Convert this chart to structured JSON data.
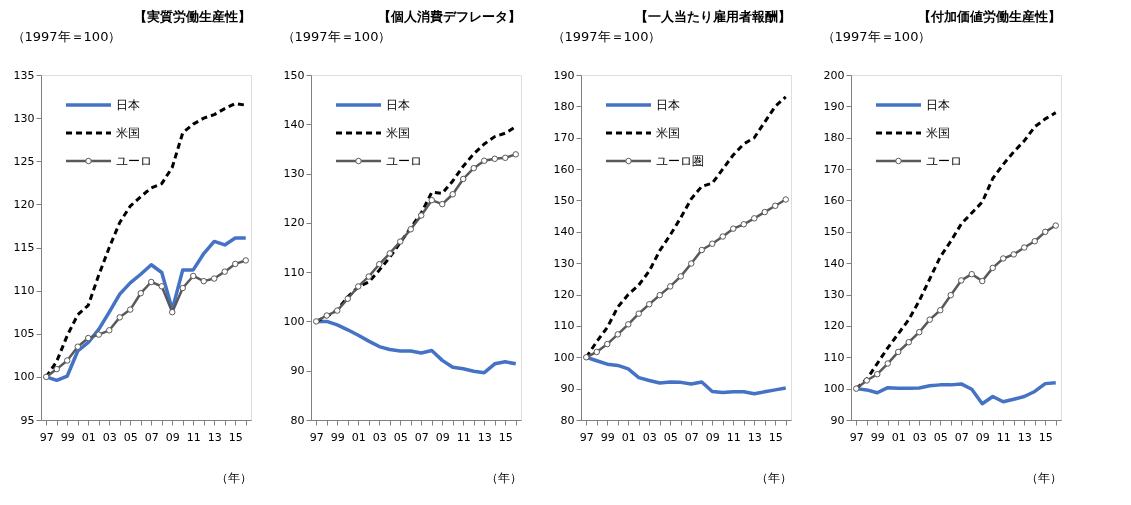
{
  "chart_data": [
    {
      "type": "line",
      "title": "【実質労働生産性】",
      "ylabel": "（1997年＝100）",
      "xlabel": "（年）",
      "categories": [
        "97",
        null,
        "99",
        null,
        "01",
        null,
        "03",
        null,
        "05",
        null,
        "07",
        null,
        "09",
        null,
        "11",
        null,
        "13",
        null,
        "15",
        null
      ],
      "ylim": [
        95,
        135
      ],
      "yticks": [
        95,
        100,
        105,
        110,
        115,
        120,
        125,
        130,
        135
      ],
      "grid": false,
      "legend": "top left",
      "series": [
        {
          "name": "日本",
          "color": "#4472c4",
          "line_style": "solid",
          "marker": "none",
          "values": [
            100,
            99.6,
            100.1,
            103,
            104,
            105.5,
            107.5,
            109.6,
            110.9,
            111.9,
            113,
            112.1,
            107.8,
            112.4,
            112.4,
            114.3,
            115.7,
            115.3,
            116.1,
            116.1
          ]
        },
        {
          "name": "米国",
          "color": "#000000",
          "line_style": "dashed",
          "marker": "none",
          "values": [
            100,
            101.8,
            104.8,
            107.2,
            108.3,
            111.8,
            115,
            117.9,
            119.8,
            120.9,
            121.9,
            122.4,
            124.3,
            128.3,
            129.3,
            130,
            130.4,
            131.1,
            131.7,
            131.5
          ]
        },
        {
          "name": "ユーロ",
          "color": "#595959",
          "line_style": "solid",
          "marker": "circle",
          "values": [
            100,
            100.9,
            101.9,
            103.5,
            104.5,
            104.9,
            105.4,
            106.9,
            107.8,
            109.7,
            111,
            110.5,
            107.5,
            110.3,
            111.7,
            111.1,
            111.4,
            112.2,
            113.1,
            113.5
          ]
        }
      ]
    },
    {
      "type": "line",
      "title": "【個人消費デフレータ】",
      "ylabel": "（1997年＝100）",
      "xlabel": "（年）",
      "categories": [
        "97",
        null,
        "99",
        null,
        "01",
        null,
        "03",
        null,
        "05",
        null,
        "07",
        null,
        "09",
        null,
        "11",
        null,
        "13",
        null,
        "15",
        null
      ],
      "ylim": [
        80,
        150
      ],
      "yticks": [
        80,
        90,
        100,
        110,
        120,
        130,
        140,
        150
      ],
      "grid": false,
      "legend": "top left",
      "series": [
        {
          "name": "日本",
          "color": "#4472c4",
          "line_style": "solid",
          "marker": "none",
          "values": [
            100,
            100,
            99.3,
            98.3,
            97.2,
            96,
            94.9,
            94.3,
            94,
            94,
            93.6,
            94.1,
            92.1,
            90.7,
            90.4,
            89.9,
            89.6,
            91.4,
            91.8,
            91.4
          ]
        },
        {
          "name": "米国",
          "color": "#000000",
          "line_style": "dashed",
          "marker": "none",
          "values": [
            100,
            101,
            102.3,
            105,
            107,
            108,
            110.4,
            113,
            116,
            119,
            122,
            126.2,
            126,
            128.5,
            131.5,
            134,
            136,
            137.5,
            138.2,
            139.5
          ]
        },
        {
          "name": "ユーロ",
          "color": "#595959",
          "line_style": "solid",
          "marker": "circle",
          "values": [
            100,
            101.2,
            102.2,
            104.6,
            107.1,
            109.1,
            111.6,
            113.8,
            116.2,
            118.7,
            121.5,
            124.6,
            123.8,
            125.8,
            128.9,
            131.1,
            132.6,
            133,
            133.2,
            133.9
          ]
        }
      ]
    },
    {
      "type": "line",
      "title": "【一人当たり雇用者報酬】",
      "ylabel": "（1997年＝100）",
      "xlabel": "（年）",
      "categories": [
        "97",
        null,
        "99",
        null,
        "01",
        null,
        "03",
        null,
        "05",
        null,
        "07",
        null,
        "09",
        null,
        "11",
        null,
        "13",
        null,
        "15",
        null
      ],
      "ylim": [
        80,
        190
      ],
      "yticks": [
        80,
        90,
        100,
        110,
        120,
        130,
        140,
        150,
        160,
        170,
        180,
        190
      ],
      "grid": false,
      "legend": "top left",
      "series": [
        {
          "name": "日本",
          "color": "#4472c4",
          "line_style": "solid",
          "marker": "none",
          "values": [
            100,
            98.9,
            97.8,
            97.4,
            96.3,
            93.5,
            92.6,
            91.8,
            92.1,
            92,
            91.5,
            92.1,
            89.1,
            88.8,
            89,
            89,
            88.4,
            89,
            89.6,
            90.2
          ]
        },
        {
          "name": "米国",
          "color": "#000000",
          "line_style": "dashed",
          "marker": "none",
          "values": [
            100,
            105,
            109.5,
            116,
            120,
            123,
            127.5,
            134,
            139,
            144.5,
            150.5,
            154.5,
            155.5,
            160,
            164.5,
            168,
            170,
            175,
            180,
            183
          ]
        },
        {
          "name": "ユーロ圏",
          "color": "#595959",
          "line_style": "solid",
          "marker": "circle",
          "values": [
            100,
            101.7,
            104.2,
            107.3,
            110.5,
            113.9,
            116.9,
            119.8,
            122.6,
            125.8,
            129.9,
            134.2,
            136.2,
            138.5,
            141,
            142.4,
            144.3,
            146.3,
            148.3,
            150.3
          ]
        }
      ]
    },
    {
      "type": "line",
      "title": "【付加価値労働生産性】",
      "ylabel": "（1997年＝100）",
      "xlabel": "（年）",
      "categories": [
        "97",
        null,
        "99",
        null,
        "01",
        null,
        "03",
        null,
        "05",
        null,
        "07",
        null,
        "09",
        null,
        "11",
        null,
        "13",
        null,
        "15",
        null
      ],
      "ylim": [
        90,
        200
      ],
      "yticks": [
        90,
        100,
        110,
        120,
        130,
        140,
        150,
        160,
        170,
        180,
        190,
        200
      ],
      "grid": false,
      "legend": "top left",
      "series": [
        {
          "name": "日本",
          "color": "#4472c4",
          "line_style": "solid",
          "marker": "none",
          "values": [
            100,
            99.6,
            98.7,
            100.3,
            100.1,
            100.1,
            100.2,
            100.9,
            101.2,
            101.2,
            101.5,
            99.8,
            95.2,
            97.5,
            95.8,
            96.6,
            97.5,
            99.1,
            101.6,
            101.9
          ]
        },
        {
          "name": "米国",
          "color": "#000000",
          "line_style": "dashed",
          "marker": "none",
          "values": [
            100,
            103,
            108,
            113,
            117.5,
            122,
            128,
            135,
            142,
            147,
            152.5,
            156,
            159.5,
            167,
            171.5,
            175.5,
            179,
            183.5,
            186,
            188
          ]
        },
        {
          "name": "ユーロ",
          "color": "#595959",
          "line_style": "solid",
          "marker": "circle",
          "values": [
            100,
            102.6,
            104.6,
            108,
            111.7,
            114.8,
            118,
            122,
            125,
            129.8,
            134.5,
            136.5,
            134.3,
            138.5,
            141.5,
            142.8,
            145,
            147,
            150,
            152
          ]
        }
      ]
    }
  ]
}
